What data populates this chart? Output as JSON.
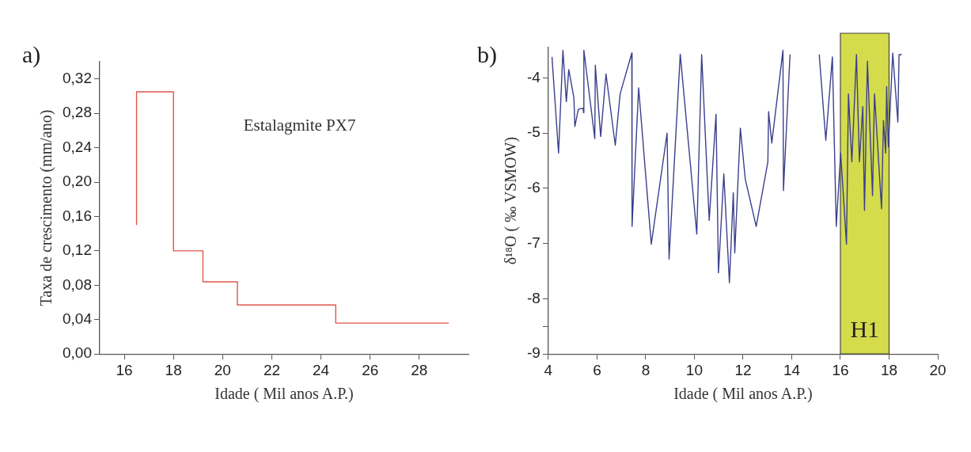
{
  "chart_data": [
    {
      "type": "line",
      "title": "a)",
      "xlabel": "Idade ( Mil anos A.P.)",
      "ylabel": "Taxa de crescimento (mm/ano)",
      "annotations": [
        "Estalagmite PX7"
      ],
      "x": [
        16.5,
        16.5,
        18,
        18,
        19.2,
        19.2,
        20.6,
        20.6,
        24.6,
        24.6,
        29.2
      ],
      "series": [
        {
          "color": "#e0564a",
          "values": [
            0.15,
            0.305,
            0.305,
            0.12,
            0.12,
            0.084,
            0.084,
            0.057,
            0.057,
            0.036,
            0.036
          ]
        }
      ],
      "xlim": [
        15,
        30
      ],
      "xticks": [
        16,
        18,
        20,
        22,
        24,
        26,
        28
      ],
      "ylim": [
        0,
        0.34
      ],
      "yticks": [
        {
          "value": 0,
          "label": "0,00"
        },
        {
          "value": 0.04,
          "label": "0,04"
        },
        {
          "value": 0.08,
          "label": "0,08"
        },
        {
          "value": 0.12,
          "label": "0,12"
        },
        {
          "value": 0.16,
          "label": "0,16"
        },
        {
          "value": 0.2,
          "label": "0,20"
        },
        {
          "value": 0.24,
          "label": "0,24"
        },
        {
          "value": 0.28,
          "label": "0,28"
        },
        {
          "value": 0.32,
          "label": "0,32"
        }
      ],
      "grid": false,
      "legend": false
    },
    {
      "type": "line",
      "title": "b)",
      "xlabel": "Idade ( Mil anos A.P.)",
      "ylabel": "δ¹⁸O ( ‰ VSMOW)",
      "x": [
        4.15,
        4.42,
        4.6,
        4.74,
        4.84,
        5.05,
        5.09,
        5.23,
        5.43,
        5.45,
        5.46,
        5.91,
        5.93,
        6.15,
        6.37,
        6.75,
        6.95,
        7.43,
        7.44,
        7.71,
        8.23,
        8.88,
        8.96,
        9.42,
        10.1,
        10.3,
        10.61,
        10.89,
        10.99,
        11.21,
        11.44,
        11.6,
        11.66,
        11.89,
        12.09,
        12.54,
        13.02,
        13.05,
        13.18,
        13.64,
        13.66,
        13.93,
        14.5,
        15.13,
        15.4,
        15.67,
        15.83,
        16.01,
        16.25,
        16.33,
        16.47,
        16.66,
        16.78,
        16.92,
        16.99,
        17.11,
        17.32,
        17.4,
        17.69,
        17.77,
        17.86,
        17.9,
        17.97,
        18.15,
        18.36,
        18.41,
        18.52
      ],
      "series": [
        {
          "color": "#3b3f8c",
          "values": [
            -3.62,
            -5.36,
            -3.5,
            -4.43,
            -3.85,
            -4.36,
            -4.88,
            -4.57,
            -4.55,
            -4.63,
            -3.5,
            -5.1,
            -3.77,
            -5.06,
            -3.93,
            -5.22,
            -4.29,
            -3.55,
            -6.69,
            -4.18,
            -7.01,
            -5.0,
            -7.28,
            -3.57,
            -6.83,
            -3.58,
            -6.58,
            -4.66,
            -7.53,
            -5.74,
            -7.71,
            -6.08,
            -7.17,
            -4.91,
            -5.83,
            -6.69,
            -5.52,
            -4.61,
            -5.18,
            -3.5,
            -6.04,
            -3.58,
            null,
            -3.58,
            -5.13,
            -3.62,
            -6.69,
            -5.36,
            -7.01,
            -4.29,
            -5.52,
            -3.58,
            -5.52,
            -4.52,
            -6.4,
            -3.7,
            -6.13,
            -4.29,
            -6.37,
            -4.77,
            -5.36,
            -4.16,
            -5.25,
            -3.55,
            -4.8,
            -3.58,
            -3.58
          ]
        }
      ],
      "xlim": [
        4,
        20
      ],
      "xticks": [
        4,
        6,
        8,
        10,
        12,
        14,
        16,
        18,
        20
      ],
      "ylim": [
        -9,
        -3.45
      ],
      "yticks": [
        -9,
        {
          "value": -8.5,
          "label": null
        },
        -8,
        -7,
        -6,
        -5,
        -4
      ],
      "bands": [
        {
          "axis": "x",
          "from": 16,
          "to": 18,
          "label": "H1",
          "color": "#d4dc4c"
        }
      ],
      "grid": false,
      "legend": false
    }
  ]
}
